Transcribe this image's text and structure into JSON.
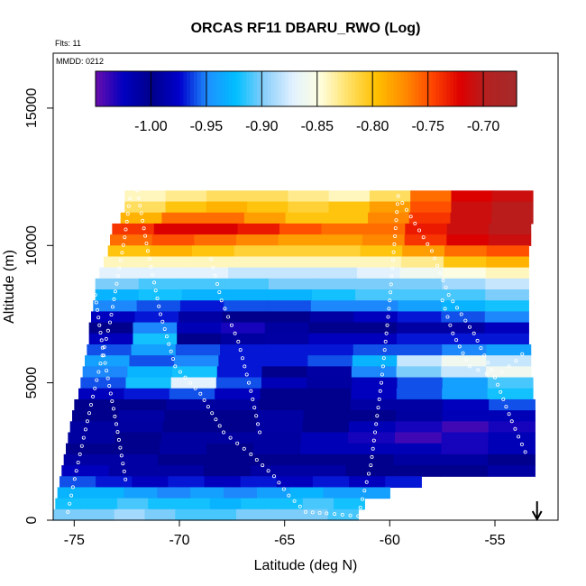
{
  "chart_data": {
    "type": "heatmap",
    "title": "ORCAS RF11 DBARU_RWO (Log)",
    "flights_label": "Flts: 11",
    "date_label": "MMDD: 0212",
    "xlabel": "Latitude (deg N)",
    "ylabel": "Altitude (m)",
    "xlim": [
      -76,
      -52
    ],
    "ylim": [
      0,
      17000
    ],
    "x_ticks": [
      -75,
      -70,
      -65,
      -60,
      -55
    ],
    "y_ticks": [
      0,
      5000,
      10000,
      15000
    ],
    "x_tick_labels": [
      "-75",
      "-70",
      "-65",
      "-60",
      "-55"
    ],
    "y_tick_labels": [
      "0",
      "5000",
      "10000",
      "15000"
    ],
    "colorbar": {
      "range": [
        -1.05,
        -0.67
      ],
      "ticks": [
        -1.0,
        -0.95,
        -0.9,
        -0.85,
        -0.8,
        -0.75,
        -0.7
      ],
      "tick_labels": [
        "-1.00",
        "-0.95",
        "-0.90",
        "-0.85",
        "-0.80",
        "-0.75",
        "-0.70"
      ],
      "colors": [
        "#6a0dad",
        "#0000c0",
        "#00008b",
        "#0000cd",
        "#1e90ff",
        "#00bfff",
        "#87cefa",
        "#e0f0ff",
        "#ffffe0",
        "#ffe066",
        "#ffc000",
        "#ff8c00",
        "#ff4500",
        "#dd0000",
        "#b22222",
        "#a52a2a"
      ]
    },
    "arrow_marker_lat": -53,
    "altitude_layers": [
      {
        "alt": 11800,
        "lat_min": -72.6,
        "lat_max": -53.2,
        "values": [
          -0.84,
          -0.83,
          -0.82,
          -0.82,
          -0.83,
          -0.84,
          -0.82,
          -0.76,
          -0.72,
          -0.71
        ]
      },
      {
        "alt": 11400,
        "lat_min": -72.6,
        "lat_max": -53.2,
        "values": [
          -0.82,
          -0.8,
          -0.79,
          -0.8,
          -0.81,
          -0.8,
          -0.78,
          -0.75,
          -0.71,
          -0.7
        ]
      },
      {
        "alt": 11000,
        "lat_min": -72.8,
        "lat_max": -53.2,
        "values": [
          -0.79,
          -0.76,
          -0.76,
          -0.78,
          -0.8,
          -0.8,
          -0.77,
          -0.74,
          -0.71,
          -0.7
        ]
      },
      {
        "alt": 10600,
        "lat_min": -73.2,
        "lat_max": -53.3,
        "values": [
          -0.74,
          -0.72,
          -0.72,
          -0.73,
          -0.75,
          -0.76,
          -0.76,
          -0.73,
          -0.71,
          -0.7
        ]
      },
      {
        "alt": 10200,
        "lat_min": -73.3,
        "lat_max": -53.3,
        "values": [
          -0.76,
          -0.75,
          -0.76,
          -0.77,
          -0.78,
          -0.78,
          -0.77,
          -0.74,
          -0.72,
          -0.71
        ]
      },
      {
        "alt": 9800,
        "lat_min": -73.4,
        "lat_max": -53.4,
        "values": [
          -0.8,
          -0.79,
          -0.8,
          -0.81,
          -0.81,
          -0.81,
          -0.8,
          -0.78,
          -0.76,
          -0.75
        ]
      },
      {
        "alt": 9400,
        "lat_min": -73.6,
        "lat_max": -53.4,
        "values": [
          -0.84,
          -0.84,
          -0.84,
          -0.84,
          -0.84,
          -0.84,
          -0.84,
          -0.83,
          -0.8,
          -0.79
        ]
      },
      {
        "alt": 9000,
        "lat_min": -73.8,
        "lat_max": -53.4,
        "values": [
          -0.87,
          -0.87,
          -0.87,
          -0.88,
          -0.88,
          -0.88,
          -0.87,
          -0.86,
          -0.85,
          -0.84
        ]
      },
      {
        "alt": 8600,
        "lat_min": -74.0,
        "lat_max": -53.4,
        "values": [
          -0.9,
          -0.91,
          -0.91,
          -0.91,
          -0.9,
          -0.9,
          -0.9,
          -0.9,
          -0.89,
          -0.88
        ]
      },
      {
        "alt": 8200,
        "lat_min": -74.0,
        "lat_max": -53.4,
        "values": [
          -0.93,
          -0.92,
          -0.93,
          -0.93,
          -0.93,
          -0.92,
          -0.91,
          -0.91,
          -0.91,
          -0.9
        ]
      },
      {
        "alt": 7800,
        "lat_min": -74.1,
        "lat_max": -53.4,
        "values": [
          -0.95,
          -0.96,
          -0.97,
          -0.96,
          -0.96,
          -0.95,
          -0.95,
          -0.94,
          -0.93,
          -0.92
        ]
      },
      {
        "alt": 7400,
        "lat_min": -74.2,
        "lat_max": -53.4,
        "values": [
          -0.98,
          -0.97,
          -0.99,
          -1.0,
          -1.0,
          -0.99,
          -0.98,
          -0.97,
          -0.96,
          -0.95
        ]
      },
      {
        "alt": 7000,
        "lat_min": -74.3,
        "lat_max": -53.4,
        "values": [
          -1.0,
          -0.95,
          -1.02,
          -1.03,
          -1.01,
          -1.0,
          -1.0,
          -0.99,
          -0.99,
          -0.98
        ]
      },
      {
        "alt": 6600,
        "lat_min": -74.3,
        "lat_max": -53.4,
        "values": [
          -0.98,
          -0.92,
          -1.0,
          -1.01,
          -0.99,
          -0.98,
          -0.98,
          -0.97,
          -0.97,
          -0.97
        ]
      },
      {
        "alt": 6200,
        "lat_min": -74.4,
        "lat_max": -53.3,
        "values": [
          -0.96,
          -0.94,
          -0.96,
          -0.97,
          -0.97,
          -0.97,
          -0.96,
          -0.96,
          -0.95,
          -0.94
        ]
      },
      {
        "alt": 5800,
        "lat_min": -74.5,
        "lat_max": -53.3,
        "values": [
          -0.94,
          -0.96,
          -0.95,
          -0.97,
          -0.97,
          -0.96,
          -0.93,
          -0.88,
          -0.86,
          -0.88
        ]
      },
      {
        "alt": 5400,
        "lat_min": -74.6,
        "lat_max": -53.3,
        "values": [
          -0.95,
          -0.93,
          -0.92,
          -0.97,
          -1.0,
          -0.99,
          -0.95,
          -0.9,
          -0.88,
          -0.86
        ]
      },
      {
        "alt": 5000,
        "lat_min": -74.7,
        "lat_max": -53.2,
        "values": [
          -0.96,
          -0.92,
          -0.87,
          -0.96,
          -1.02,
          -1.01,
          -0.98,
          -0.96,
          -0.94,
          -0.91
        ]
      },
      {
        "alt": 4600,
        "lat_min": -74.8,
        "lat_max": -53.2,
        "values": [
          -0.98,
          -0.97,
          -0.96,
          -0.98,
          -1.0,
          -1.0,
          -0.98,
          -0.96,
          -0.94,
          -0.92
        ]
      },
      {
        "alt": 4200,
        "lat_min": -75.0,
        "lat_max": -53.1,
        "values": [
          -1.0,
          -1.0,
          -1.01,
          -1.01,
          -1.0,
          -1.0,
          -0.99,
          -0.99,
          -0.98,
          -0.96
        ]
      },
      {
        "alt": 3800,
        "lat_min": -75.1,
        "lat_max": -53.1,
        "values": [
          -1.0,
          -0.99,
          -1.0,
          -1.0,
          -0.99,
          -1.0,
          -1.0,
          -1.01,
          -1.02,
          -1.02
        ]
      },
      {
        "alt": 3400,
        "lat_min": -75.2,
        "lat_max": -53.1,
        "values": [
          -1.01,
          -1.01,
          -1.0,
          -1.0,
          -0.99,
          -1.0,
          -1.02,
          -1.03,
          -1.04,
          -1.03
        ]
      },
      {
        "alt": 3000,
        "lat_min": -75.3,
        "lat_max": -53.1,
        "values": [
          -1.01,
          -1.0,
          -1.01,
          -1.01,
          -1.01,
          -1.02,
          -1.03,
          -1.04,
          -1.03,
          -1.02
        ]
      },
      {
        "alt": 2600,
        "lat_min": -75.4,
        "lat_max": -53.1,
        "values": [
          -1.0,
          -1.0,
          -1.01,
          -1.0,
          -1.01,
          -1.02,
          -1.02,
          -1.02,
          -1.03,
          -1.02
        ]
      },
      {
        "alt": 2200,
        "lat_min": -75.5,
        "lat_max": -53.1,
        "values": [
          -0.99,
          -0.99,
          -1.0,
          -1.0,
          -1.0,
          -1.0,
          -1.0,
          -1.01,
          -1.01,
          -1.0
        ]
      },
      {
        "alt": 1800,
        "lat_min": -75.6,
        "lat_max": -53.1,
        "values": [
          -0.98,
          -0.99,
          -0.99,
          -1.0,
          -0.99,
          -0.99,
          -1.0,
          -1.0,
          -1.0,
          -0.99
        ]
      },
      {
        "alt": 1400,
        "lat_min": -75.7,
        "lat_max": -58.5,
        "values": [
          -0.96,
          -0.97,
          -0.98,
          -0.97,
          -0.98,
          -0.97,
          -0.98,
          -0.97,
          -0.98,
          -0.97
        ]
      },
      {
        "alt": 1000,
        "lat_min": -75.8,
        "lat_max": -60.0,
        "values": [
          -0.93,
          -0.93,
          -0.94,
          -0.95,
          -0.94,
          -0.95,
          -0.94,
          -0.93,
          -0.94,
          -0.94
        ]
      },
      {
        "alt": 600,
        "lat_min": -75.9,
        "lat_max": -61.2,
        "values": [
          -0.92,
          -0.92,
          -0.91,
          -0.92,
          -0.92,
          -0.93,
          -0.92,
          -0.92,
          -0.91,
          -0.92
        ]
      },
      {
        "alt": 200,
        "lat_min": -76.0,
        "lat_max": -61.5,
        "values": [
          -0.9,
          -0.9,
          -0.89,
          -0.9,
          -0.91,
          -0.91,
          -0.9,
          -0.9,
          -0.9,
          -0.91
        ]
      }
    ],
    "flight_tracks": [
      {
        "name": "track-1",
        "lat": [
          -75.3,
          -74.9,
          -74.2,
          -73.3,
          -72.6,
          -72.3
        ],
        "alt": [
          300,
          1800,
          4200,
          7200,
          10300,
          12000
        ]
      },
      {
        "name": "track-2",
        "lat": [
          -72.0,
          -71.5,
          -70.9,
          -70.2,
          -69.0,
          -67.9,
          -66.6,
          -65.5,
          -64.8,
          -64.0,
          -63.0,
          -61.5
        ],
        "alt": [
          12000,
          9800,
          7500,
          5600,
          4600,
          3200,
          2400,
          1600,
          900,
          300,
          250,
          150
        ]
      },
      {
        "name": "track-3",
        "lat": [
          -61.5,
          -60.9,
          -60.4,
          -60.0,
          -59.6,
          -58.8,
          -58.0,
          -57.2,
          -56.0,
          -55.0,
          -54.2,
          -53.4
        ],
        "alt": [
          150,
          2000,
          5000,
          8000,
          11800,
          10800,
          9800,
          8200,
          6800,
          5200,
          3600,
          2200
        ]
      },
      {
        "name": "track-4",
        "lat": [
          -74.0,
          -73.6,
          -73.0,
          -72.5
        ],
        "alt": [
          8200,
          6000,
          3500,
          1200
        ]
      },
      {
        "name": "track-5",
        "lat": [
          -68.5,
          -68.0,
          -67.2,
          -66.6,
          -66.1
        ],
        "alt": [
          9500,
          8000,
          6500,
          4700,
          2900
        ]
      },
      {
        "name": "track-6",
        "lat": [
          -57.5,
          -57.0,
          -56.2,
          -55.0,
          -54.0,
          -53.4
        ],
        "alt": [
          8000,
          6800,
          5600,
          5200,
          5800,
          6300
        ]
      }
    ]
  }
}
